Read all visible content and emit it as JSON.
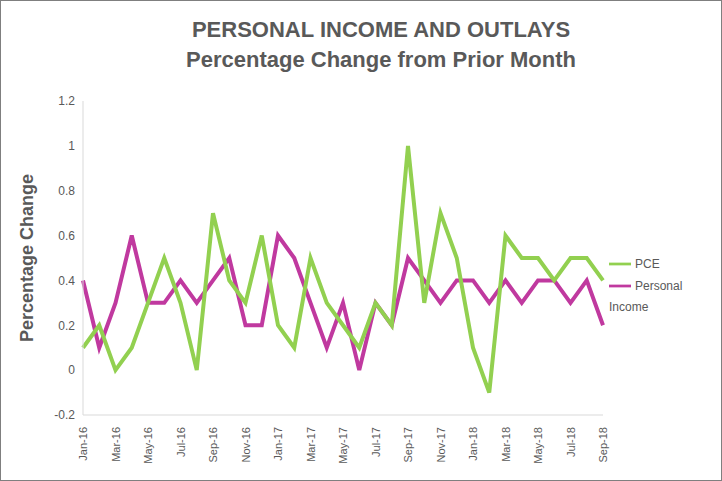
{
  "chart_data": {
    "type": "line",
    "title": "PERSONAL INCOME AND OUTLAYS",
    "subtitle": "Percentage Change from Prior Month",
    "y_label": "Percentage Change",
    "categories": [
      "Jan-16",
      null,
      "Mar-16",
      null,
      "May-16",
      null,
      "Jul-16",
      null,
      "Sep-16",
      null,
      "Nov-16",
      null,
      "Jan-17",
      null,
      "Mar-17",
      null,
      "May-17",
      null,
      "Jul-17",
      null,
      "Sep-17",
      null,
      "Nov-17",
      null,
      "Jan-18",
      null,
      "Mar-18",
      null,
      "May-18",
      null,
      "Jul-18",
      null,
      "Sep-18"
    ],
    "series": [
      {
        "name": "Personal Income",
        "color": "#c0399f",
        "values": [
          0.4,
          0.1,
          0.3,
          0.6,
          0.3,
          0.3,
          0.4,
          0.3,
          0.4,
          0.5,
          0.2,
          0.2,
          0.6,
          0.5,
          0.3,
          0.1,
          0.3,
          0.0,
          0.3,
          0.2,
          0.5,
          0.4,
          0.3,
          0.4,
          0.4,
          0.3,
          0.4,
          0.3,
          0.4,
          0.4,
          0.3,
          0.4,
          0.2
        ]
      },
      {
        "name": "PCE",
        "color": "#92d050",
        "values": [
          0.1,
          0.2,
          0.0,
          0.1,
          0.3,
          0.5,
          0.3,
          0.0,
          0.7,
          0.4,
          0.3,
          0.6,
          0.2,
          0.1,
          0.5,
          0.3,
          0.2,
          0.1,
          0.3,
          0.2,
          1.0,
          0.3,
          0.7,
          0.5,
          0.1,
          -0.1,
          0.6,
          0.5,
          0.5,
          0.4,
          0.5,
          0.5,
          0.4
        ]
      }
    ],
    "ylim": [
      -0.2,
      1.2
    ],
    "yticks": [
      -0.2,
      0,
      0.2,
      0.4,
      0.6,
      0.8,
      1,
      1.2
    ],
    "grid": false,
    "legend": "right"
  }
}
